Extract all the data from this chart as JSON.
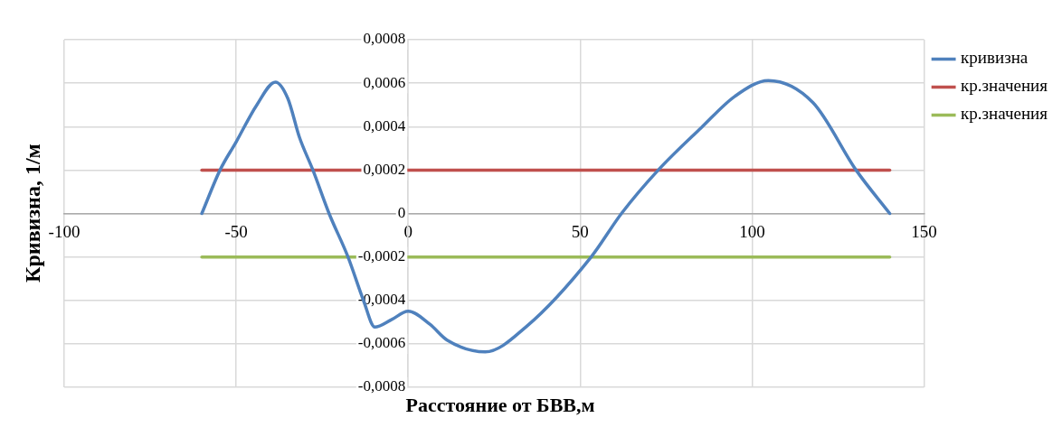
{
  "chart_data": {
    "type": "line",
    "xlabel": "Расстояние от БВВ,м",
    "ylabel": "Кривизна, 1/м",
    "xlim": [
      -100,
      150
    ],
    "xticks": [
      -100,
      -50,
      0,
      50,
      100,
      150
    ],
    "ylim": [
      -0.0008,
      0.0008
    ],
    "yticks": [
      {
        "value": -0.0008,
        "label": "-0,0008"
      },
      {
        "value": -0.0006,
        "label": "-0,0006"
      },
      {
        "value": -0.0004,
        "label": "-0,0004"
      },
      {
        "value": -0.0002,
        "label": "-0,0002"
      },
      {
        "value": 0,
        "label": "0"
      },
      {
        "value": 0.0002,
        "label": "0,0002"
      },
      {
        "value": 0.0004,
        "label": "0,0004"
      },
      {
        "value": 0.0006,
        "label": "0,0006"
      },
      {
        "value": 0.0008,
        "label": "0,0008"
      }
    ],
    "grid": true,
    "legend": "right",
    "marker": "none",
    "line_style": "solid",
    "series": [
      {
        "name": "кривизна",
        "color": "#4f81bd",
        "x": [
          -60,
          -54.7,
          -50,
          -44,
          -38.6,
          -35,
          -31.6,
          -27.7,
          -23,
          -17.5,
          -13,
          -9.7,
          -5,
          0,
          6.3,
          11.3,
          22.4,
          34.4,
          53.2,
          62,
          72.7,
          85.2,
          95,
          104.7,
          117.7,
          130.2,
          140
        ],
        "values": [
          0,
          0.0002,
          0.00033,
          0.0005,
          0.000605,
          0.00053,
          0.00035,
          0.0002,
          0,
          -0.0002,
          -0.0004,
          -0.000523,
          -0.00049,
          -0.00045,
          -0.00051,
          -0.000583,
          -0.000637,
          -0.00052,
          -0.0002,
          0,
          0.0002,
          0.000395,
          0.00054,
          0.000612,
          0.00051,
          0.0002,
          0
        ]
      },
      {
        "name": "кр.значения",
        "color": "#c0504d",
        "x": [
          -60,
          140
        ],
        "values": [
          0.0002,
          0.0002
        ]
      },
      {
        "name": "кр.значения",
        "color": "#9bbb59",
        "x": [
          -60,
          140
        ],
        "values": [
          -0.0002,
          -0.0002
        ]
      }
    ]
  }
}
